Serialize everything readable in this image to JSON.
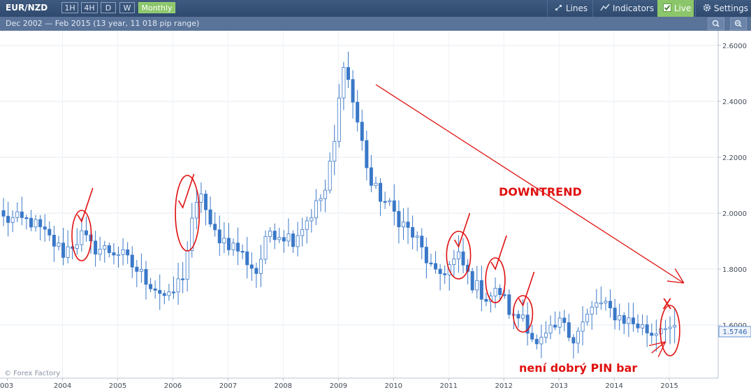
{
  "toolbar": {
    "symbol": "EUR/NZD",
    "timeframes": [
      "1H",
      "4H",
      "D",
      "W",
      "Monthly"
    ],
    "active_timeframe": "Monthly",
    "lines_label": "Lines",
    "indicators_label": "Indicators",
    "live_label": "Live",
    "settings_label": "Settings",
    "range_text": "Dec 2002 — Feb 2015  (13 year, 11 018 pip range)"
  },
  "icons": {
    "lines": "lines-icon",
    "indicators": "indicators-icon",
    "live": "checkbox-checked-icon",
    "settings": "gear-icon",
    "zoom_in": "zoom-in-icon",
    "zoom_out": "zoom-out-icon"
  },
  "watermark": "© Forex Factory",
  "colors": {
    "up_candle": "#ffffff",
    "down_candle": "#3a78c8",
    "annotation": "#e01010",
    "toolbar_bg": "#34507a",
    "live_bg": "#8cc66a"
  },
  "chart_data": {
    "type": "candlestick",
    "x_range": [
      "2002-12",
      "2015-02"
    ],
    "y_range": [
      1.5,
      2.64
    ],
    "x_tick_labels": [
      "003",
      "2004",
      "2005",
      "2006",
      "2007",
      "2008",
      "2009",
      "2010",
      "2011",
      "2012",
      "2013",
      "2014",
      "2015"
    ],
    "y_tick_labels": [
      "2.6000",
      "2.4000",
      "2.2000",
      "2.0000",
      "1.8000",
      "1.6000"
    ],
    "y_tick_values": [
      2.6,
      2.4,
      2.2,
      2.0,
      1.8,
      1.6
    ],
    "current_price": "1.5746",
    "grid": true,
    "axis_position": "right",
    "anchor_closes": [
      [
        "2002-12",
        1.98
      ],
      [
        "2003-06",
        1.97
      ],
      [
        "2004-01",
        1.86
      ],
      [
        "2004-05",
        1.92
      ],
      [
        "2004-07",
        1.88
      ],
      [
        "2005-01",
        1.86
      ],
      [
        "2005-06",
        1.78
      ],
      [
        "2005-12",
        1.69
      ],
      [
        "2006-03",
        1.78
      ],
      [
        "2006-05",
        1.96
      ],
      [
        "2006-07",
        2.08
      ],
      [
        "2006-09",
        1.94
      ],
      [
        "2007-03",
        1.87
      ],
      [
        "2007-07",
        1.79
      ],
      [
        "2007-10",
        1.94
      ],
      [
        "2008-03",
        1.91
      ],
      [
        "2008-07",
        2.0
      ],
      [
        "2008-10",
        2.08
      ],
      [
        "2008-12",
        2.25
      ],
      [
        "2009-02",
        2.55
      ],
      [
        "2009-04",
        2.4
      ],
      [
        "2009-08",
        2.1
      ],
      [
        "2010-01",
        2.0
      ],
      [
        "2010-06",
        1.9
      ],
      [
        "2010-10",
        1.77
      ],
      [
        "2011-03",
        1.84
      ],
      [
        "2011-06",
        1.75
      ],
      [
        "2011-09",
        1.7
      ],
      [
        "2011-12",
        1.72
      ],
      [
        "2012-03",
        1.62
      ],
      [
        "2012-05",
        1.64
      ],
      [
        "2012-08",
        1.52
      ],
      [
        "2013-02",
        1.62
      ],
      [
        "2013-04",
        1.55
      ],
      [
        "2013-09",
        1.68
      ],
      [
        "2014-02",
        1.63
      ],
      [
        "2014-06",
        1.6
      ],
      [
        "2014-09",
        1.57
      ],
      [
        "2014-12",
        1.61
      ],
      [
        "2015-02",
        1.57
      ]
    ],
    "annotations": [
      {
        "type": "text",
        "text": "DOWNTREND"
      },
      {
        "type": "text",
        "text": "není dobrý PIN bar"
      },
      {
        "type": "text",
        "text": "X"
      },
      {
        "type": "arrow",
        "description": "downtrend line",
        "from": [
          "2009-09",
          2.46
        ],
        "to": [
          "2015-04",
          1.75
        ]
      },
      {
        "type": "arrow",
        "description": "points to last candle",
        "from": [
          "2014-09",
          1.5
        ],
        "to": [
          "2014-12",
          1.54
        ]
      },
      {
        "type": "check",
        "at": [
          "2004-05",
          1.97
        ]
      },
      {
        "type": "check",
        "at": [
          "2006-03",
          2.02
        ]
      },
      {
        "type": "check",
        "at": [
          "2011-03",
          1.88
        ]
      },
      {
        "type": "check",
        "at": [
          "2011-11",
          1.8
        ]
      },
      {
        "type": "check",
        "at": [
          "2012-05",
          1.67
        ]
      },
      {
        "type": "ellipse",
        "at": [
          "2004-05",
          1.92
        ],
        "span_months": 3,
        "span_price": 0.16
      },
      {
        "type": "ellipse",
        "at": [
          "2006-04",
          2.0
        ],
        "span_months": 4,
        "span_price": 0.25
      },
      {
        "type": "ellipse",
        "at": [
          "2011-03",
          1.85
        ],
        "span_months": 4,
        "span_price": 0.15
      },
      {
        "type": "ellipse",
        "at": [
          "2011-11",
          1.76
        ],
        "span_months": 3,
        "span_price": 0.14
      },
      {
        "type": "ellipse",
        "at": [
          "2012-05",
          1.64
        ],
        "span_months": 3,
        "span_price": 0.11
      },
      {
        "type": "ellipse",
        "at": [
          "2015-01",
          1.58
        ],
        "span_months": 3,
        "span_price": 0.16
      }
    ]
  }
}
